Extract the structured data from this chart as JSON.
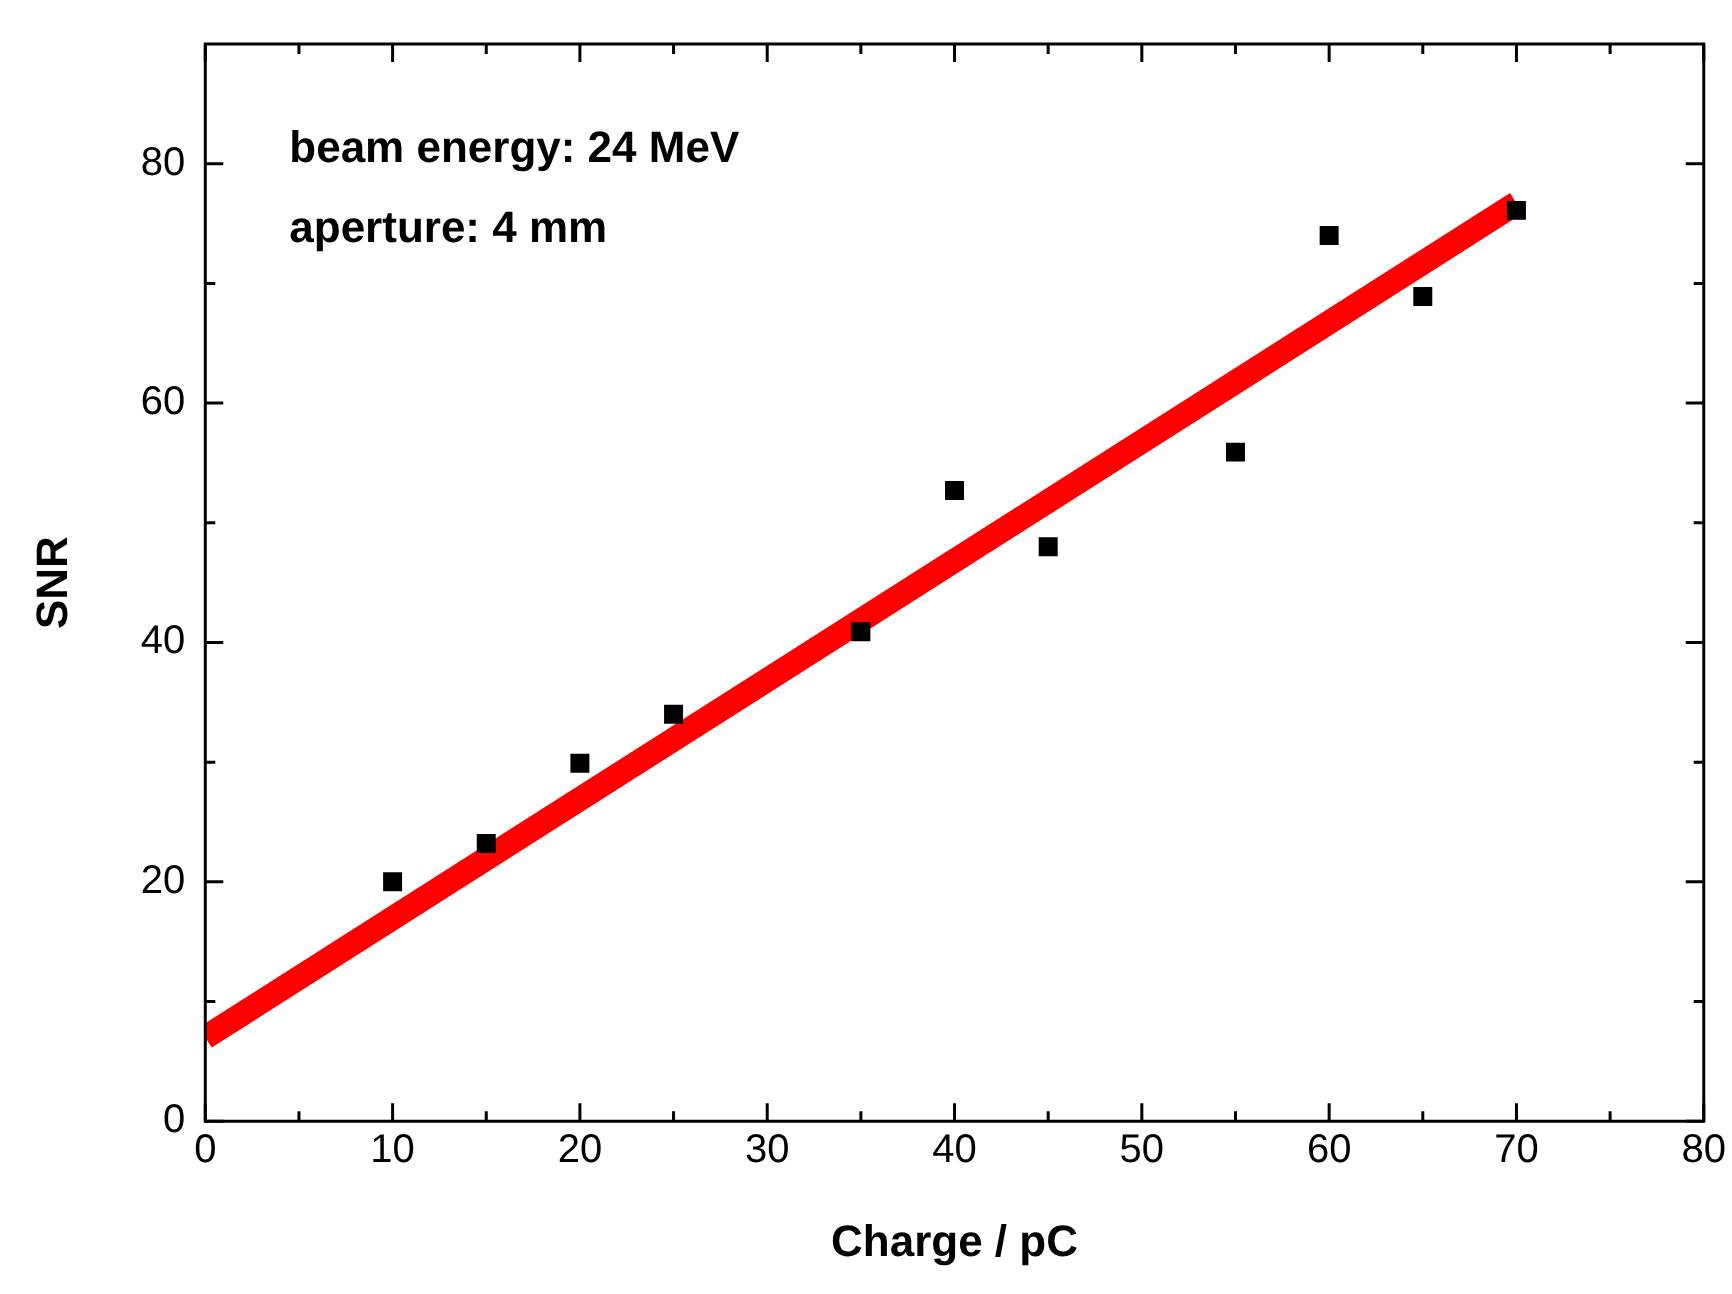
{
  "chart_data": {
    "type": "scatter",
    "xlabel": "Charge / pC",
    "ylabel": "SNR",
    "annotations": [
      "beam energy: 24 MeV",
      "aperture: 4 mm"
    ],
    "xlim": [
      0,
      80
    ],
    "ylim": [
      0,
      90
    ],
    "xticks": [
      0,
      {
        "value": 5,
        "label": null
      },
      10,
      {
        "value": 15,
        "label": null
      },
      20,
      {
        "value": 25,
        "label": null
      },
      30,
      {
        "value": 35,
        "label": null
      },
      40,
      {
        "value": 45,
        "label": null
      },
      50,
      {
        "value": 55,
        "label": null
      },
      60,
      {
        "value": 65,
        "label": null
      },
      70,
      {
        "value": 75,
        "label": null
      },
      80
    ],
    "yticks": [
      0,
      {
        "value": 10,
        "label": null
      },
      20,
      {
        "value": 30,
        "label": null
      },
      40,
      {
        "value": 50,
        "label": null
      },
      60,
      {
        "value": 70,
        "label": null
      },
      80
    ],
    "grid": false,
    "legend": false,
    "marker": "square",
    "series": [
      {
        "type": "scatter",
        "color": "#000000",
        "x": [
          10,
          15,
          20,
          25,
          35,
          40,
          45,
          55,
          60,
          65,
          70
        ],
        "values": [
          20,
          23.2,
          29.9,
          34,
          40.9,
          52.7,
          48,
          55.9,
          74,
          68.9,
          76.1
        ]
      },
      {
        "type": "line",
        "color": "#ff0000",
        "x": [
          0,
          70
        ],
        "values": [
          7.0,
          76.7
        ],
        "marker": "none",
        "line_style": "solid"
      }
    ]
  }
}
